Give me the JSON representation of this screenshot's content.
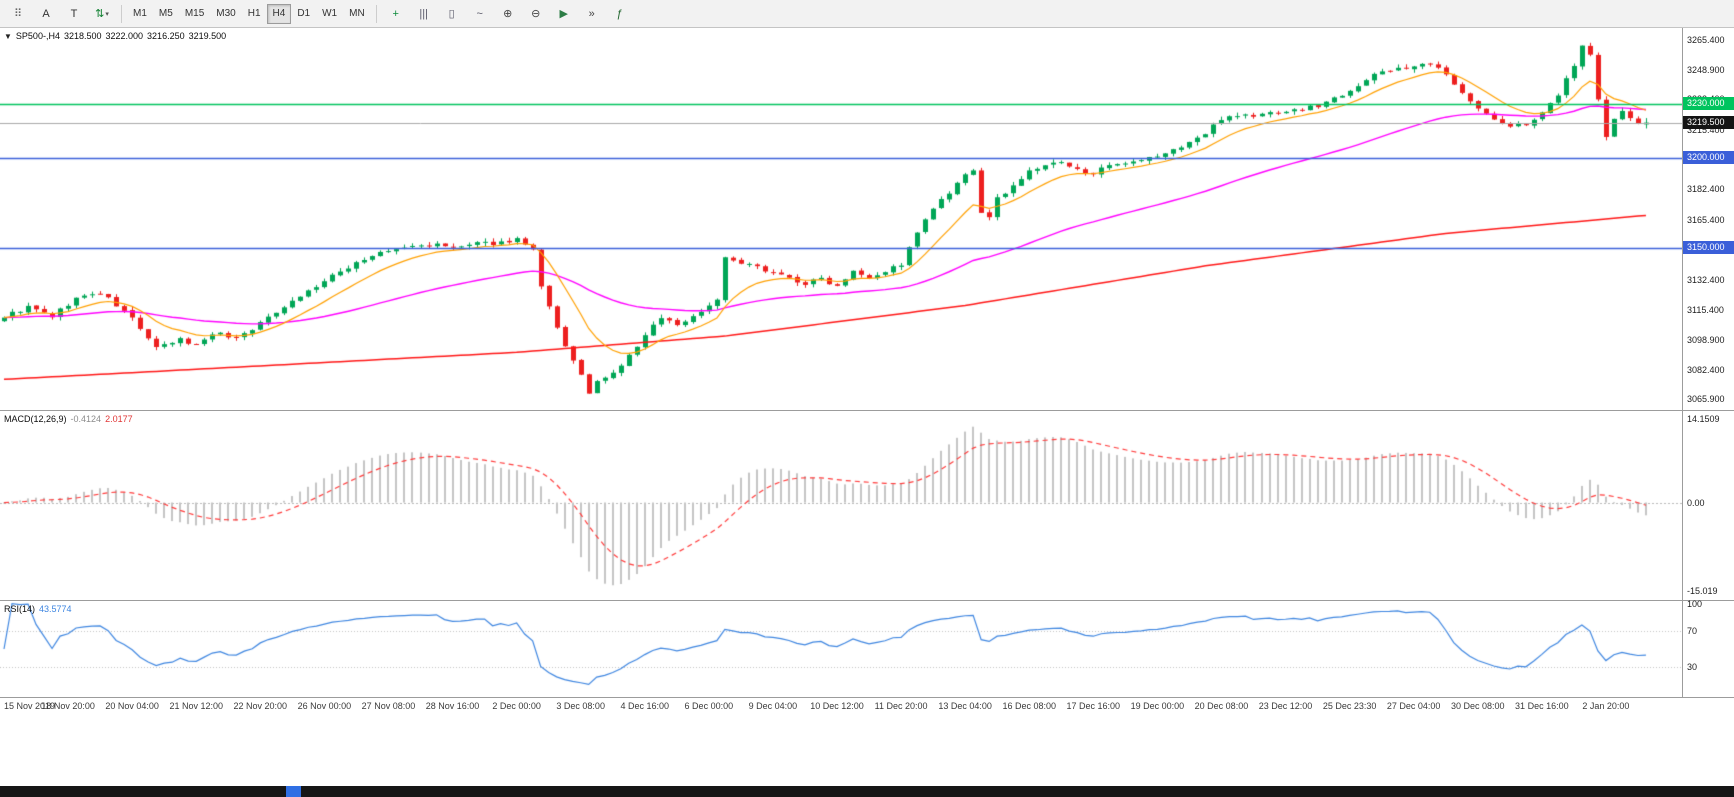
{
  "toolbar": {
    "tools_left": [
      {
        "name": "symbol-palette-icon",
        "glyph": "⠿",
        "color": "#666666"
      },
      {
        "name": "text-label-icon",
        "glyph": "A",
        "color": "#333333"
      },
      {
        "name": "text-frame-icon",
        "glyph": "T",
        "color": "#333333"
      },
      {
        "name": "arrows-tool-icon",
        "glyph": "⇅",
        "color": "#0a7d2c",
        "has_caret": true
      }
    ],
    "timeframes": [
      "M1",
      "M5",
      "M15",
      "M30",
      "H1",
      "H4",
      "D1",
      "W1",
      "MN"
    ],
    "selected_timeframe": "H4",
    "tools_right": [
      {
        "name": "new-order-icon",
        "glyph": "+",
        "color": "#0a8a3a"
      },
      {
        "name": "chart-bars-icon",
        "glyph": "|||",
        "color": "#5a5a6a"
      },
      {
        "name": "chart-candles-icon",
        "glyph": "▯",
        "color": "#5a5a6a"
      },
      {
        "name": "chart-line-icon",
        "glyph": "~",
        "color": "#5a5a6a"
      },
      {
        "name": "zoom-in-icon",
        "glyph": "⊕",
        "color": "#444444"
      },
      {
        "name": "zoom-out-icon",
        "glyph": "⊖",
        "color": "#444444"
      },
      {
        "name": "auto-scroll-icon",
        "glyph": "▶",
        "color": "#2d7d46"
      },
      {
        "name": "chart-shift-icon",
        "glyph": "»",
        "color": "#444444"
      },
      {
        "name": "indicators-icon",
        "glyph": "ƒ",
        "color": "#20652d"
      }
    ]
  },
  "chart_data": {
    "type": "candlestick",
    "symbol": "SP500-",
    "timeframe": "H4",
    "symbol_period": "SP500-,H4",
    "ohlc_display": {
      "open": "3218.500",
      "high": "3222.000",
      "low": "3216.250",
      "close": "3219.500"
    },
    "bars": 206,
    "right_gap_bars": 4,
    "x_tick_step": 8,
    "y_range": [
      3060,
      3272
    ],
    "y_ticks": [
      "3265.400",
      "3248.900",
      "3232.400",
      "3215.400",
      "3198.900",
      "3182.400",
      "3165.400",
      "3148.900",
      "3132.400",
      "3115.400",
      "3098.900",
      "3082.400",
      "3065.900"
    ],
    "x_labels": [
      "15 Nov 2019",
      "18 Nov 20:00",
      "20 Nov 04:00",
      "21 Nov 12:00",
      "22 Nov 20:00",
      "26 Nov 00:00",
      "27 Nov 08:00",
      "28 Nov 16:00",
      "2 Dec 00:00",
      "3 Dec 08:00",
      "4 Dec 16:00",
      "6 Dec 00:00",
      "9 Dec 04:00",
      "10 Dec 12:00",
      "11 Dec 20:00",
      "13 Dec 04:00",
      "16 Dec 08:00",
      "17 Dec 16:00",
      "19 Dec 00:00",
      "20 Dec 08:00",
      "23 Dec 12:00",
      "25 Dec 23:30",
      "27 Dec 04:00",
      "30 Dec 08:00",
      "31 Dec 16:00",
      "2 Jan 20:00"
    ],
    "close_waypoints": [
      [
        0,
        3112
      ],
      [
        3,
        3117
      ],
      [
        6,
        3112
      ],
      [
        9,
        3122
      ],
      [
        12,
        3125
      ],
      [
        14,
        3118
      ],
      [
        16,
        3111
      ],
      [
        19,
        3094
      ],
      [
        22,
        3099
      ],
      [
        24,
        3096
      ],
      [
        26,
        3103
      ],
      [
        29,
        3100
      ],
      [
        32,
        3108
      ],
      [
        35,
        3118
      ],
      [
        38,
        3126
      ],
      [
        41,
        3134
      ],
      [
        44,
        3142
      ],
      [
        47,
        3147
      ],
      [
        50,
        3150
      ],
      [
        53,
        3152
      ],
      [
        56,
        3150
      ],
      [
        59,
        3152
      ],
      [
        62,
        3153
      ],
      [
        64,
        3155
      ],
      [
        66,
        3148
      ],
      [
        67,
        3128
      ],
      [
        69,
        3105
      ],
      [
        71,
        3087
      ],
      [
        73,
        3070
      ],
      [
        74,
        3075
      ],
      [
        76,
        3080
      ],
      [
        78,
        3090
      ],
      [
        80,
        3101
      ],
      [
        82,
        3112
      ],
      [
        84,
        3107
      ],
      [
        86,
        3112
      ],
      [
        88,
        3118
      ],
      [
        89,
        3122
      ],
      [
        90,
        3144
      ],
      [
        92,
        3141
      ],
      [
        94,
        3139
      ],
      [
        96,
        3137
      ],
      [
        98,
        3133
      ],
      [
        100,
        3130
      ],
      [
        102,
        3133
      ],
      [
        104,
        3129
      ],
      [
        106,
        3138
      ],
      [
        108,
        3134
      ],
      [
        110,
        3137
      ],
      [
        112,
        3141
      ],
      [
        114,
        3158
      ],
      [
        116,
        3172
      ],
      [
        118,
        3180
      ],
      [
        120,
        3190
      ],
      [
        121,
        3193
      ],
      [
        122,
        3170
      ],
      [
        123,
        3166
      ],
      [
        124,
        3177
      ],
      [
        126,
        3185
      ],
      [
        128,
        3192
      ],
      [
        130,
        3196
      ],
      [
        132,
        3197
      ],
      [
        134,
        3193
      ],
      [
        136,
        3192
      ],
      [
        138,
        3195
      ],
      [
        140,
        3196
      ],
      [
        142,
        3198
      ],
      [
        144,
        3201
      ],
      [
        146,
        3204
      ],
      [
        148,
        3209
      ],
      [
        150,
        3213
      ],
      [
        152,
        3222
      ],
      [
        154,
        3224
      ],
      [
        156,
        3223
      ],
      [
        158,
        3225
      ],
      [
        160,
        3226
      ],
      [
        162,
        3227
      ],
      [
        164,
        3229
      ],
      [
        166,
        3233
      ],
      [
        168,
        3238
      ],
      [
        170,
        3243
      ],
      [
        172,
        3248
      ],
      [
        174,
        3250
      ],
      [
        176,
        3250
      ],
      [
        178,
        3252
      ],
      [
        180,
        3246
      ],
      [
        182,
        3237
      ],
      [
        184,
        3227
      ],
      [
        186,
        3221
      ],
      [
        188,
        3217
      ],
      [
        190,
        3219
      ],
      [
        192,
        3224
      ],
      [
        194,
        3235
      ],
      [
        196,
        3252
      ],
      [
        197,
        3262
      ],
      [
        198,
        3258
      ],
      [
        199,
        3232
      ],
      [
        200,
        3212
      ],
      [
        201,
        3221
      ],
      [
        202,
        3226
      ],
      [
        203,
        3222
      ],
      [
        204,
        3218
      ],
      [
        205,
        3219.5
      ]
    ],
    "last_candle": {
      "open": 3218.5,
      "high": 3222.0,
      "low": 3216.25,
      "close": 3219.5
    },
    "overlays": [
      {
        "name": "ma-fast",
        "type": "ema",
        "period": 10,
        "color": "#ffa000"
      },
      {
        "name": "ma-mid",
        "type": "ema",
        "period": 48,
        "color": "#ff00ff"
      },
      {
        "name": "ma-slow",
        "type": "waypoints",
        "color": "#ff1616",
        "points": [
          [
            0,
            3077
          ],
          [
            30,
            3084
          ],
          [
            64,
            3092
          ],
          [
            90,
            3101
          ],
          [
            120,
            3118
          ],
          [
            150,
            3140
          ],
          [
            180,
            3158
          ],
          [
            205,
            3168
          ]
        ]
      }
    ],
    "colors": {
      "up": "#00a656",
      "down": "#ed1f1f",
      "bid_line": "#a8a8a8"
    },
    "levels": [
      {
        "price": 3230.0,
        "label": "3230.000",
        "color": "#00c45e"
      },
      {
        "price": 3200.0,
        "label": "3200.000",
        "color": "#3a5fd9"
      },
      {
        "price": 3150.0,
        "label": "3150.000",
        "color": "#3a5fd9"
      }
    ],
    "bid": {
      "price": 3219.5,
      "label": "3219.500",
      "badge_color": "#141414"
    },
    "macd": {
      "label": "MACD(12,26,9)",
      "value_main": "-0.4124",
      "value_signal": "2.0177",
      "fast": 12,
      "slow": 26,
      "signal": 9,
      "y_range": [
        -16.5,
        15.5
      ],
      "y_ticks": [
        {
          "v": 14.1509,
          "text": "14.1509"
        },
        {
          "v": 0,
          "text": "0.00"
        },
        {
          "v": -15.019,
          "text": "-15.019"
        }
      ],
      "colors": {
        "hist": "#c4c4c4",
        "signal": "#ff3b3b"
      }
    },
    "rsi": {
      "label": "RSI(14)",
      "value": "43.5774",
      "period": 14,
      "y_range": [
        -3,
        103
      ],
      "levels": [
        70,
        30
      ],
      "y_ticks": [
        {
          "v": 100,
          "text": "100"
        },
        {
          "v": 70,
          "text": "70"
        },
        {
          "v": 30,
          "text": "30"
        }
      ],
      "color": "#3d85e0"
    }
  }
}
